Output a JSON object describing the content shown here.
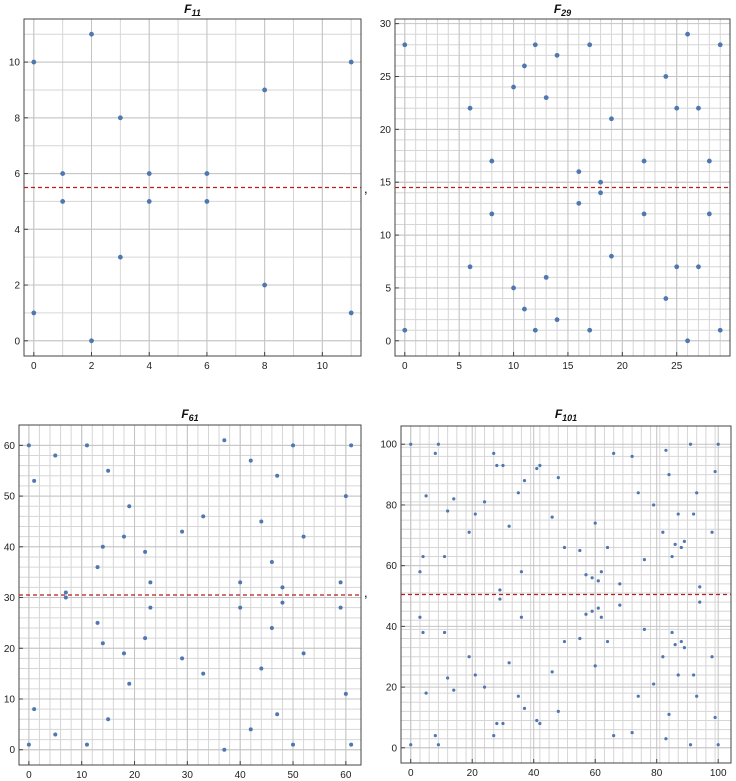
{
  "separator": ",",
  "colors": {
    "points": "#4f77b0",
    "reference_line": "#b81c1c",
    "grid": "#d6d6d6",
    "frame": "#444444"
  },
  "chart_data": [
    {
      "type": "scatter",
      "title_base": "F",
      "title_sub": "11",
      "xlim": [
        0,
        11
      ],
      "ylim": [
        0,
        11
      ],
      "xticks": [
        0,
        2,
        4,
        6,
        8,
        10
      ],
      "yticks": [
        0,
        2,
        4,
        6,
        8,
        10
      ],
      "grid_step": 1,
      "reference_line_y": 5.5,
      "points": [
        [
          0,
          1
        ],
        [
          0,
          10
        ],
        [
          1,
          5
        ],
        [
          1,
          6
        ],
        [
          2,
          0
        ],
        [
          2,
          11
        ],
        [
          3,
          3
        ],
        [
          3,
          8
        ],
        [
          4,
          5
        ],
        [
          4,
          6
        ],
        [
          6,
          5
        ],
        [
          6,
          6
        ],
        [
          8,
          2
        ],
        [
          8,
          9
        ],
        [
          11,
          1
        ],
        [
          11,
          10
        ]
      ]
    },
    {
      "type": "scatter",
      "title_base": "F",
      "title_sub": "29",
      "xlim": [
        0,
        29
      ],
      "ylim": [
        0,
        29
      ],
      "xticks": [
        0,
        5,
        10,
        15,
        20,
        25
      ],
      "yticks": [
        0,
        5,
        10,
        15,
        20,
        25,
        30
      ],
      "grid_step": 1,
      "reference_line_y": 14.5,
      "points": [
        [
          0,
          1
        ],
        [
          0,
          28
        ],
        [
          6,
          7
        ],
        [
          6,
          22
        ],
        [
          8,
          12
        ],
        [
          8,
          17
        ],
        [
          10,
          5
        ],
        [
          10,
          24
        ],
        [
          11,
          3
        ],
        [
          11,
          26
        ],
        [
          12,
          1
        ],
        [
          12,
          28
        ],
        [
          13,
          6
        ],
        [
          13,
          23
        ],
        [
          14,
          2
        ],
        [
          14,
          27
        ],
        [
          16,
          13
        ],
        [
          16,
          16
        ],
        [
          17,
          1
        ],
        [
          17,
          28
        ],
        [
          18,
          14
        ],
        [
          18,
          15
        ],
        [
          19,
          8
        ],
        [
          19,
          21
        ],
        [
          22,
          12
        ],
        [
          22,
          17
        ],
        [
          24,
          4
        ],
        [
          24,
          25
        ],
        [
          25,
          7
        ],
        [
          25,
          22
        ],
        [
          26,
          0
        ],
        [
          26,
          29
        ],
        [
          27,
          7
        ],
        [
          27,
          22
        ],
        [
          28,
          12
        ],
        [
          28,
          17
        ],
        [
          29,
          1
        ],
        [
          29,
          28
        ]
      ]
    },
    {
      "type": "scatter",
      "title_base": "F",
      "title_sub": "61",
      "xlim": [
        0,
        61
      ],
      "ylim": [
        0,
        61
      ],
      "xticks": [
        0,
        10,
        20,
        30,
        40,
        50,
        60
      ],
      "yticks": [
        0,
        10,
        20,
        30,
        40,
        50,
        60
      ],
      "grid_step": 2,
      "reference_line_y": 30.5,
      "points": [
        [
          0,
          1
        ],
        [
          0,
          60
        ],
        [
          1,
          8
        ],
        [
          1,
          53
        ],
        [
          5,
          3
        ],
        [
          5,
          58
        ],
        [
          7,
          30
        ],
        [
          7,
          31
        ],
        [
          11,
          1
        ],
        [
          11,
          60
        ],
        [
          13,
          25
        ],
        [
          13,
          36
        ],
        [
          14,
          21
        ],
        [
          14,
          40
        ],
        [
          15,
          6
        ],
        [
          15,
          55
        ],
        [
          18,
          19
        ],
        [
          18,
          42
        ],
        [
          19,
          13
        ],
        [
          19,
          48
        ],
        [
          22,
          22
        ],
        [
          22,
          39
        ],
        [
          23,
          28
        ],
        [
          23,
          33
        ],
        [
          29,
          18
        ],
        [
          29,
          43
        ],
        [
          33,
          15
        ],
        [
          33,
          46
        ],
        [
          37,
          0
        ],
        [
          37,
          61
        ],
        [
          40,
          28
        ],
        [
          40,
          33
        ],
        [
          42,
          4
        ],
        [
          42,
          57
        ],
        [
          44,
          16
        ],
        [
          44,
          45
        ],
        [
          46,
          24
        ],
        [
          46,
          37
        ],
        [
          47,
          7
        ],
        [
          47,
          54
        ],
        [
          48,
          29
        ],
        [
          48,
          32
        ],
        [
          50,
          1
        ],
        [
          50,
          60
        ],
        [
          52,
          19
        ],
        [
          52,
          42
        ],
        [
          59,
          28
        ],
        [
          59,
          33
        ],
        [
          60,
          11
        ],
        [
          60,
          50
        ],
        [
          61,
          1
        ],
        [
          61,
          60
        ]
      ]
    },
    {
      "type": "scatter",
      "title_base": "F",
      "title_sub": "101",
      "xlim": [
        0,
        101
      ],
      "ylim": [
        0,
        101
      ],
      "xticks": [
        0,
        20,
        40,
        60,
        80,
        100
      ],
      "yticks": [
        0,
        20,
        40,
        60,
        80,
        100
      ],
      "grid_step": 3,
      "reference_line_y": 50.5,
      "points": [
        [
          0,
          1
        ],
        [
          0,
          100
        ],
        [
          3,
          43
        ],
        [
          3,
          58
        ],
        [
          4,
          38
        ],
        [
          4,
          63
        ],
        [
          5,
          18
        ],
        [
          5,
          83
        ],
        [
          8,
          4
        ],
        [
          8,
          97
        ],
        [
          9,
          1
        ],
        [
          9,
          100
        ],
        [
          11,
          38
        ],
        [
          11,
          63
        ],
        [
          12,
          23
        ],
        [
          12,
          78
        ],
        [
          14,
          19
        ],
        [
          14,
          82
        ],
        [
          19,
          30
        ],
        [
          19,
          71
        ],
        [
          21,
          24
        ],
        [
          21,
          77
        ],
        [
          24,
          20
        ],
        [
          24,
          81
        ],
        [
          27,
          4
        ],
        [
          27,
          97
        ],
        [
          28,
          8
        ],
        [
          28,
          93
        ],
        [
          29,
          49
        ],
        [
          29,
          52
        ],
        [
          30,
          8
        ],
        [
          30,
          93
        ],
        [
          32,
          28
        ],
        [
          32,
          73
        ],
        [
          35,
          17
        ],
        [
          35,
          84
        ],
        [
          36,
          43
        ],
        [
          36,
          58
        ],
        [
          37,
          13
        ],
        [
          37,
          88
        ],
        [
          41,
          9
        ],
        [
          41,
          92
        ],
        [
          42,
          8
        ],
        [
          42,
          93
        ],
        [
          46,
          25
        ],
        [
          46,
          76
        ],
        [
          48,
          12
        ],
        [
          48,
          89
        ],
        [
          50,
          35
        ],
        [
          50,
          66
        ],
        [
          55,
          36
        ],
        [
          55,
          65
        ],
        [
          57,
          44
        ],
        [
          57,
          57
        ],
        [
          59,
          45
        ],
        [
          59,
          56
        ],
        [
          60,
          27
        ],
        [
          60,
          74
        ],
        [
          61,
          46
        ],
        [
          61,
          55
        ],
        [
          62,
          43
        ],
        [
          62,
          58
        ],
        [
          64,
          35
        ],
        [
          64,
          66
        ],
        [
          66,
          4
        ],
        [
          66,
          97
        ],
        [
          68,
          47
        ],
        [
          68,
          54
        ],
        [
          72,
          5
        ],
        [
          72,
          96
        ],
        [
          74,
          17
        ],
        [
          74,
          84
        ],
        [
          76,
          39
        ],
        [
          76,
          62
        ],
        [
          79,
          21
        ],
        [
          79,
          80
        ],
        [
          82,
          30
        ],
        [
          82,
          71
        ],
        [
          83,
          3
        ],
        [
          83,
          98
        ],
        [
          84,
          11
        ],
        [
          84,
          90
        ],
        [
          85,
          38
        ],
        [
          85,
          63
        ],
        [
          86,
          34
        ],
        [
          86,
          67
        ],
        [
          87,
          24
        ],
        [
          87,
          77
        ],
        [
          88,
          35
        ],
        [
          88,
          66
        ],
        [
          89,
          33
        ],
        [
          89,
          68
        ],
        [
          91,
          1
        ],
        [
          91,
          100
        ],
        [
          92,
          24
        ],
        [
          92,
          77
        ],
        [
          93,
          17
        ],
        [
          93,
          84
        ],
        [
          94,
          48
        ],
        [
          94,
          53
        ],
        [
          98,
          30
        ],
        [
          98,
          71
        ],
        [
          99,
          10
        ],
        [
          99,
          91
        ],
        [
          100,
          1
        ],
        [
          100,
          100
        ]
      ]
    }
  ]
}
